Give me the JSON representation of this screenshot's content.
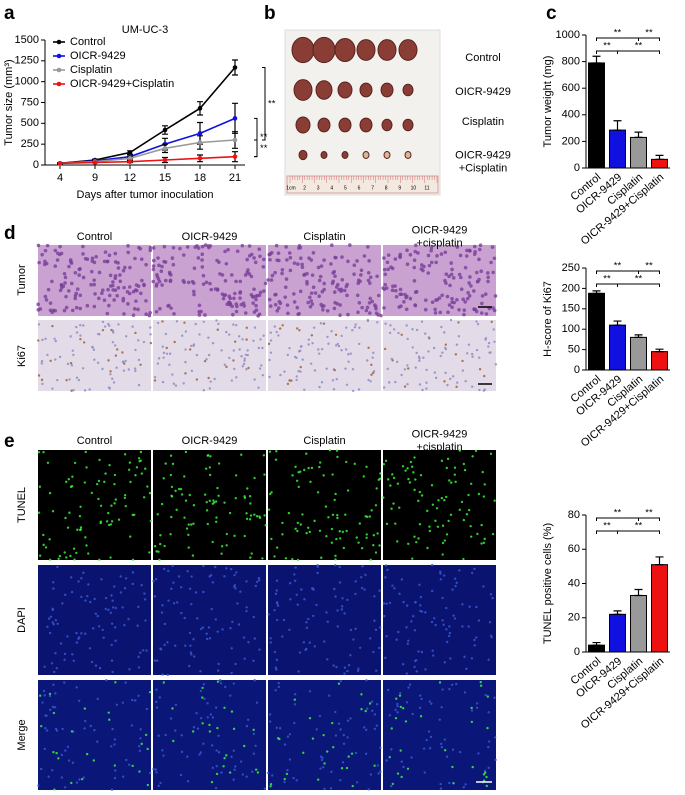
{
  "panels": {
    "letters": [
      "a",
      "b",
      "c",
      "d",
      "e"
    ],
    "b": {
      "rows": [
        "Control",
        "OICR-9429",
        "Cisplatin",
        [
          "OICR-9429",
          "+Cisplatin"
        ]
      ],
      "ruler": [
        "1cm",
        "2",
        "3",
        "4",
        "5",
        "6",
        "7",
        "8",
        "9",
        "10",
        "11"
      ]
    },
    "d": {
      "columns": [
        "Control",
        "OICR-9429",
        "Cisplatin",
        [
          "OICR-9429",
          "+cisplatin"
        ]
      ],
      "rows": [
        "Tumor",
        "Ki67"
      ]
    },
    "e": {
      "columns": [
        "Control",
        "OICR-9429",
        "Cisplatin",
        [
          "OICR-9429",
          "+cisplatin"
        ]
      ],
      "rows": [
        "TUNEL",
        "DAPI",
        "Merge"
      ]
    }
  },
  "chart_data": [
    {
      "type": "line",
      "title": "UM-UC-3",
      "x_label": "Days after tumor inoculation",
      "y_label": "Tumor size (mm³)",
      "categories": [
        "4",
        "9",
        "12",
        "15",
        "18",
        "21"
      ],
      "ylim": [
        0,
        1500
      ],
      "yticks": [
        0,
        250,
        500,
        750,
        1000,
        1250,
        1500
      ],
      "series": [
        {
          "name": "Control",
          "color": "#000000",
          "values": [
            20,
            60,
            150,
            420,
            680,
            1170
          ],
          "errors": [
            5,
            10,
            20,
            50,
            80,
            90
          ]
        },
        {
          "name": "OICR-9429",
          "color": "#1010e0",
          "values": [
            20,
            50,
            100,
            250,
            380,
            560
          ],
          "errors": [
            5,
            10,
            20,
            70,
            130,
            180
          ]
        },
        {
          "name": "Cisplatin",
          "color": "#999999",
          "values": [
            20,
            40,
            80,
            200,
            270,
            300
          ],
          "errors": [
            5,
            10,
            20,
            50,
            80,
            100
          ]
        },
        {
          "name": "OICR-9429+Cisplatin",
          "color": "#ee1111",
          "values": [
            20,
            30,
            40,
            60,
            80,
            100
          ],
          "errors": [
            5,
            5,
            10,
            30,
            40,
            60
          ]
        }
      ],
      "significance": [
        {
          "pair": [
            0,
            2
          ],
          "label": "**"
        },
        {
          "pair": [
            1,
            3
          ],
          "label": "**"
        },
        {
          "pair": [
            2,
            3
          ],
          "label": "**"
        }
      ]
    },
    {
      "type": "bar",
      "y_label": "Tumor weight (mg)",
      "categories": [
        "Control",
        "OICR-9429",
        "Cisplatin",
        "OICR-9429+Cisplatin"
      ],
      "colors": [
        "#000000",
        "#1010e0",
        "#999999",
        "#ee1111"
      ],
      "values": [
        790,
        285,
        230,
        65
      ],
      "errors": [
        50,
        70,
        40,
        30
      ],
      "ylim": [
        0,
        1000
      ],
      "yticks": [
        0,
        200,
        400,
        600,
        800,
        1000
      ],
      "significance": [
        {
          "pair": [
            0,
            2
          ],
          "label": "**",
          "level": 2
        },
        {
          "pair": [
            2,
            3
          ],
          "label": "**",
          "level": 2
        },
        {
          "pair": [
            0,
            1
          ],
          "label": "**",
          "level": 1
        },
        {
          "pair": [
            1,
            3
          ],
          "label": "**",
          "level": 1
        }
      ]
    },
    {
      "type": "bar",
      "y_label": "H-score of Ki67",
      "categories": [
        "Control",
        "OICR-9429",
        "Cisplatin",
        "OICR-9429+Cisplatin"
      ],
      "colors": [
        "#000000",
        "#1010e0",
        "#999999",
        "#ee1111"
      ],
      "values": [
        188,
        110,
        80,
        45
      ],
      "errors": [
        6,
        10,
        6,
        6
      ],
      "ylim": [
        0,
        250
      ],
      "yticks": [
        0,
        50,
        100,
        150,
        200,
        250
      ],
      "significance": [
        {
          "pair": [
            0,
            2
          ],
          "label": "**",
          "level": 2
        },
        {
          "pair": [
            2,
            3
          ],
          "label": "**",
          "level": 2
        },
        {
          "pair": [
            0,
            1
          ],
          "label": "**",
          "level": 1
        },
        {
          "pair": [
            1,
            3
          ],
          "label": "**",
          "level": 1
        }
      ]
    },
    {
      "type": "bar",
      "y_label": "TUNEL positive cells (%)",
      "categories": [
        "Control",
        "OICR-9429",
        "Cisplatin",
        "OICR-9429+Cisplatin"
      ],
      "colors": [
        "#000000",
        "#1010e0",
        "#999999",
        "#ee1111"
      ],
      "values": [
        4,
        22,
        33,
        51
      ],
      "errors": [
        1.5,
        2,
        3.5,
        4.5
      ],
      "ylim": [
        0,
        80
      ],
      "yticks": [
        0,
        20,
        40,
        60,
        80
      ],
      "significance": [
        {
          "pair": [
            0,
            2
          ],
          "label": "**",
          "level": 2
        },
        {
          "pair": [
            2,
            3
          ],
          "label": "**",
          "level": 2
        },
        {
          "pair": [
            0,
            1
          ],
          "label": "**",
          "level": 1
        },
        {
          "pair": [
            1,
            3
          ],
          "label": "**",
          "level": 1
        }
      ]
    }
  ]
}
